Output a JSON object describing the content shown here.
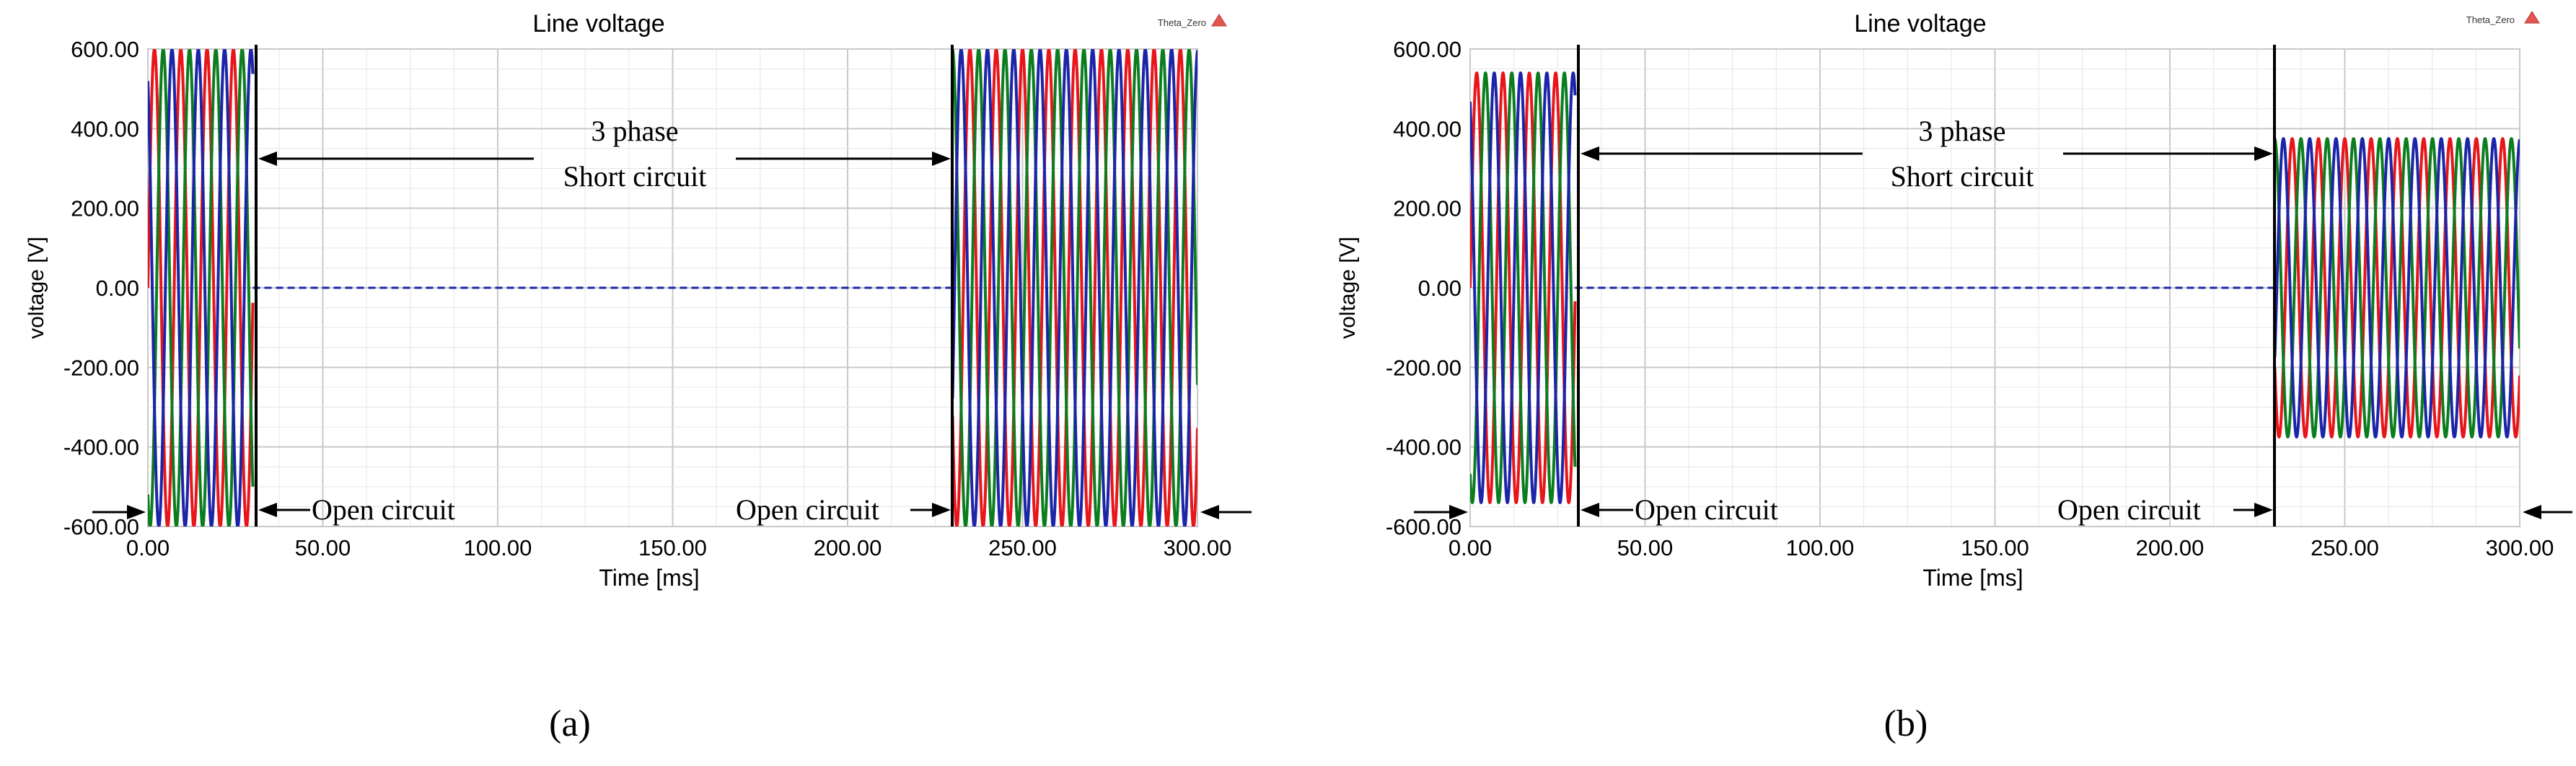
{
  "chart_data": [
    {
      "type": "line",
      "panel_label": "(a)",
      "title": "Line voltage",
      "xlabel": "Time [ms]",
      "ylabel": "voltage [V]",
      "legend": "Theta_Zero",
      "xlim": [
        0,
        300
      ],
      "ylim": [
        -600,
        600
      ],
      "x_ticks": [
        "0.00",
        "50.00",
        "100.00",
        "150.00",
        "200.00",
        "250.00",
        "300.00"
      ],
      "y_ticks": [
        "600.00",
        "400.00",
        "200.00",
        "0.00",
        "-200.00",
        "-400.00",
        "-600.00"
      ],
      "grid": true,
      "series": [
        {
          "color": "#e8151a",
          "segments": [
            {
              "t_start": 0,
              "t_end": 30,
              "amplitude": 600,
              "phase_deg": 0
            },
            {
              "t_start": 230,
              "t_end": 300,
              "amplitude": 600,
              "phase_deg": 0
            }
          ]
        },
        {
          "color": "#0b7d1f",
          "segments": [
            {
              "t_start": 0,
              "t_end": 30,
              "amplitude": 600,
              "phase_deg": -120
            },
            {
              "t_start": 230,
              "t_end": 300,
              "amplitude": 600,
              "phase_deg": -120
            }
          ]
        },
        {
          "color": "#1c24a8",
          "segments": [
            {
              "t_start": 0,
              "t_end": 30,
              "amplitude": 600,
              "phase_deg": 120
            },
            {
              "t_start": 230,
              "t_end": 300,
              "amplitude": 600,
              "phase_deg": 120
            }
          ]
        }
      ],
      "frequency_hz": 133,
      "fault_window": [
        30,
        230
      ],
      "annotations": {
        "short_line1": "3 phase",
        "short_line2": "Short circuit",
        "open_left": "Open circuit",
        "open_right": "Open circuit"
      }
    },
    {
      "type": "line",
      "panel_label": "(b)",
      "title": "Line voltage",
      "xlabel": "Time [ms]",
      "ylabel": "voltage [V]",
      "legend": "Theta_Zero",
      "xlim": [
        0,
        300
      ],
      "ylim": [
        -600,
        600
      ],
      "x_ticks": [
        "0.00",
        "50.00",
        "100.00",
        "150.00",
        "200.00",
        "250.00",
        "300.00"
      ],
      "y_ticks": [
        "600.00",
        "400.00",
        "200.00",
        "0.00",
        "-200.00",
        "-400.00",
        "-600.00"
      ],
      "grid": true,
      "series": [
        {
          "color": "#e8151a",
          "segments": [
            {
              "t_start": 0,
              "t_end": 30,
              "amplitude": 540,
              "phase_deg": 0
            },
            {
              "t_start": 230,
              "t_end": 300,
              "amplitude": 375,
              "phase_deg": 0
            }
          ]
        },
        {
          "color": "#0b7d1f",
          "segments": [
            {
              "t_start": 0,
              "t_end": 30,
              "amplitude": 540,
              "phase_deg": -120
            },
            {
              "t_start": 230,
              "t_end": 300,
              "amplitude": 375,
              "phase_deg": -120
            }
          ]
        },
        {
          "color": "#1c24a8",
          "segments": [
            {
              "t_start": 0,
              "t_end": 30,
              "amplitude": 540,
              "phase_deg": 120
            },
            {
              "t_start": 230,
              "t_end": 300,
              "amplitude": 375,
              "phase_deg": 120
            }
          ]
        }
      ],
      "frequency_hz": 133,
      "fault_window": [
        30,
        230
      ],
      "annotations": {
        "short_line1": "3 phase",
        "short_line2": "Short circuit",
        "open_left": "Open circuit",
        "open_right": "Open circuit"
      }
    }
  ]
}
